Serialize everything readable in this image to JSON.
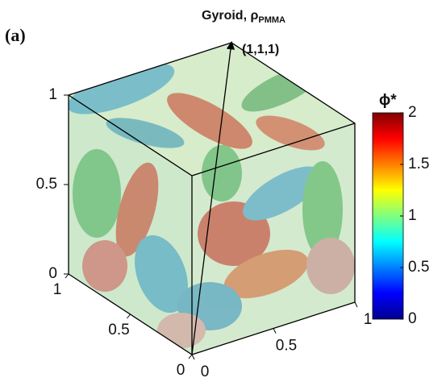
{
  "chart_data": {
    "type": "isosurface",
    "panel_label": "(a)",
    "title": "Gyroid, ρ",
    "title_subscript": "PMMA",
    "annotation": "(1,1,1)",
    "xlim": [
      0,
      1
    ],
    "xticks": [
      0,
      0.5,
      1
    ],
    "ylim": [
      0,
      1
    ],
    "yticks": [
      0,
      0.5,
      1
    ],
    "zlim": [
      0,
      1
    ],
    "zticks": [
      0,
      0.5,
      1
    ],
    "colorbar": {
      "label": "ϕ*",
      "lim": [
        0,
        2
      ],
      "ticks": [
        0,
        0.5,
        1,
        1.5,
        2
      ],
      "colormap": "jet"
    }
  }
}
